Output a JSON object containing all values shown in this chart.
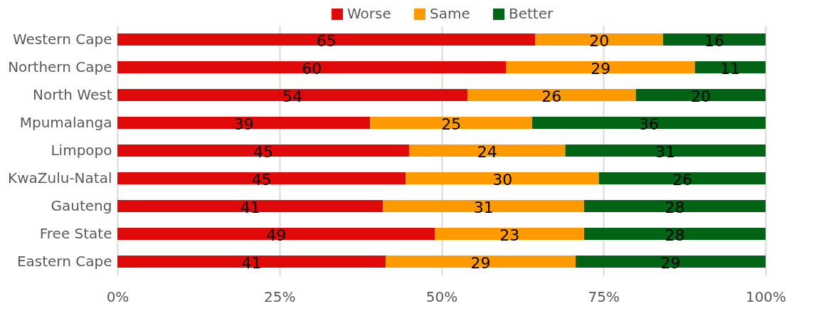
{
  "chart_data": {
    "type": "bar",
    "orientation": "horizontal",
    "stacked": true,
    "categories": [
      "Western Cape",
      "Northern Cape",
      "North West",
      "Mpumalanga",
      "Limpopo",
      "KwaZulu-Natal",
      "Gauteng",
      "Free State",
      "Eastern Cape"
    ],
    "series": [
      {
        "name": "Worse",
        "color": "#e00a0a",
        "values": [
          64.5,
          60.0,
          54.0,
          39.0,
          45.0,
          44.5,
          41.0,
          49.0,
          41.4
        ],
        "value_labels": [
          "65",
          "60",
          "54",
          "39",
          "45",
          "45",
          "41",
          "49",
          "41"
        ]
      },
      {
        "name": "Same",
        "color": "#ff9900",
        "values": [
          19.7,
          29.1,
          26.0,
          25.0,
          24.1,
          29.8,
          31.0,
          23.0,
          29.3
        ],
        "value_labels": [
          "20",
          "29",
          "26",
          "25",
          "24",
          "30",
          "31",
          "23",
          "29"
        ]
      },
      {
        "name": "Better",
        "color": "#006414",
        "values": [
          15.8,
          10.9,
          20.0,
          36.0,
          30.9,
          25.7,
          28.0,
          28.0,
          29.3
        ],
        "value_labels": [
          "16",
          "11",
          "20",
          "36",
          "31",
          "26",
          "28",
          "28",
          "29"
        ]
      }
    ],
    "xlim": [
      0,
      100
    ],
    "xticks": [
      {
        "value": 0,
        "label": "0%"
      },
      {
        "value": 25,
        "label": "25%"
      },
      {
        "value": 50,
        "label": "50%"
      },
      {
        "value": 75,
        "label": "75%"
      },
      {
        "value": 100,
        "label": "100%"
      }
    ],
    "grid": "x",
    "legend": "top"
  }
}
